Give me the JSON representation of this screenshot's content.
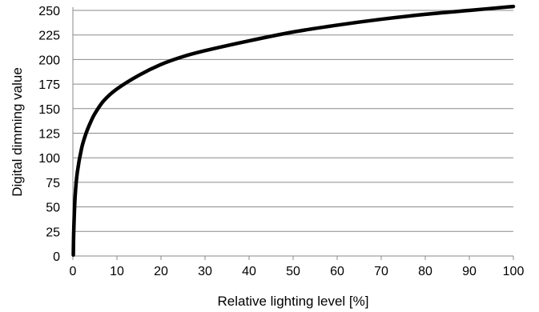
{
  "chart_data": {
    "type": "line",
    "title": "",
    "xlabel": "Relative lighting level [%]",
    "ylabel": "Digital dimming value",
    "xlim": [
      0,
      100
    ],
    "ylim": [
      0,
      250
    ],
    "x_ticks": [
      0,
      10,
      20,
      30,
      40,
      50,
      60,
      70,
      80,
      90,
      100
    ],
    "y_ticks": [
      0,
      25,
      50,
      75,
      100,
      125,
      150,
      175,
      200,
      225,
      250
    ],
    "grid": "horizontal",
    "legend": "none",
    "series": [
      {
        "color": "#000000",
        "points": [
          [
            0.1,
            1
          ],
          [
            0.2,
            26
          ],
          [
            0.5,
            60
          ],
          [
            1,
            85
          ],
          [
            2,
            110
          ],
          [
            3,
            125
          ],
          [
            4,
            136
          ],
          [
            5,
            145
          ],
          [
            7,
            158
          ],
          [
            10,
            170
          ],
          [
            15,
            184
          ],
          [
            20,
            195
          ],
          [
            25,
            203
          ],
          [
            30,
            209
          ],
          [
            40,
            219
          ],
          [
            50,
            228
          ],
          [
            60,
            235
          ],
          [
            70,
            241
          ],
          [
            80,
            246
          ],
          [
            90,
            250
          ],
          [
            100,
            254
          ]
        ]
      }
    ]
  }
}
